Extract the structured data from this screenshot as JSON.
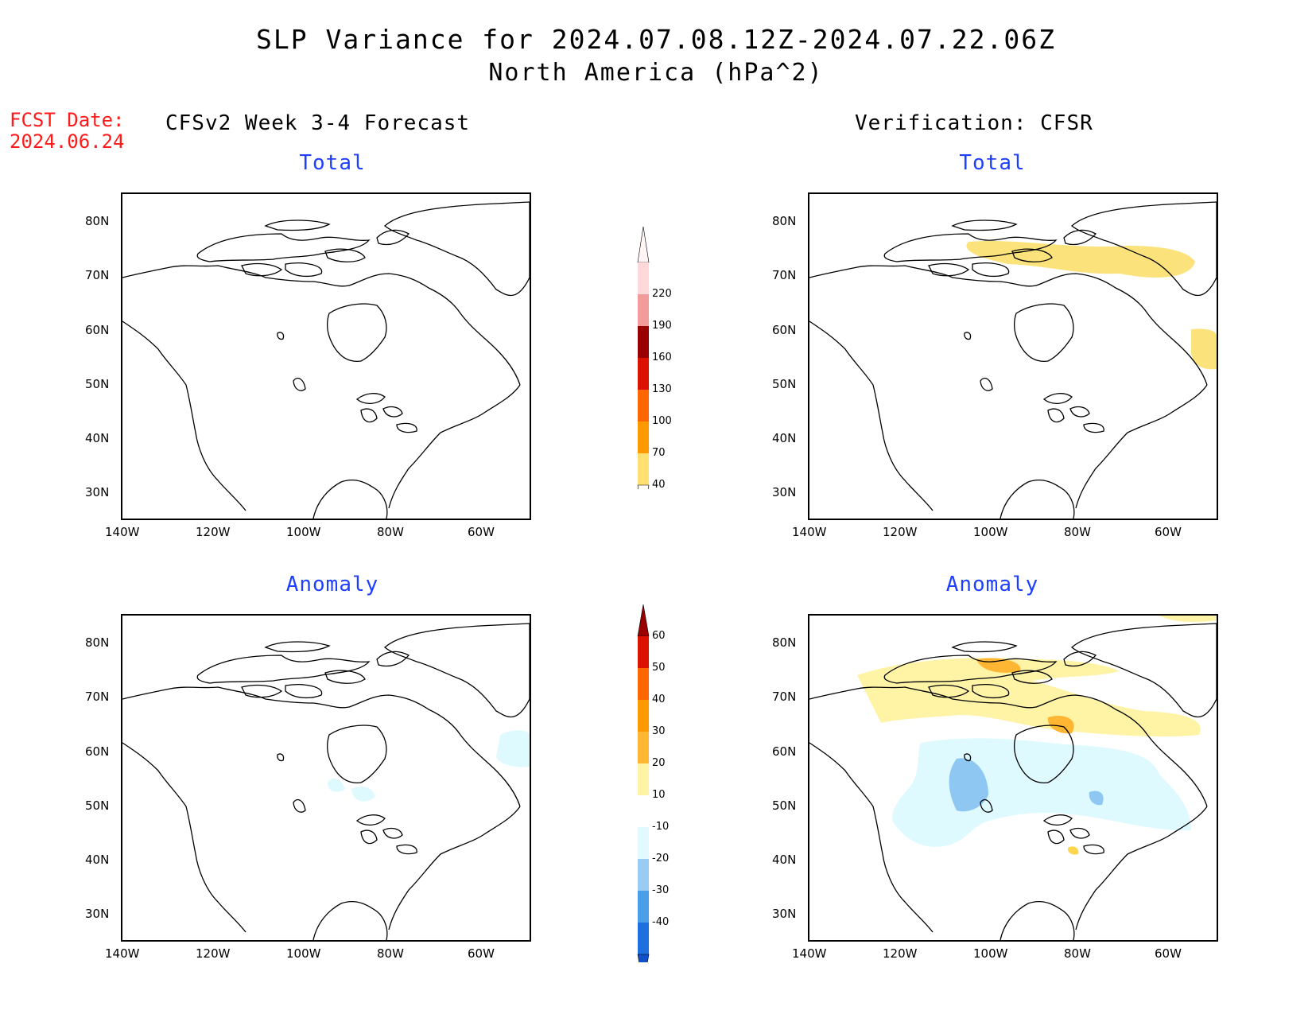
{
  "title": {
    "line1": "SLP Variance for 2024.07.08.12Z-2024.07.22.06Z",
    "line2": "North America (hPa^2)"
  },
  "fcst": {
    "line1": "FCST Date:",
    "line2": "2024.06.24"
  },
  "columns": {
    "left": "CFSv2 Week 3-4 Forecast",
    "right": "Verification: CFSR"
  },
  "panels": {
    "top_left": "Total",
    "top_right": "Total",
    "bottom_left": "Anomaly",
    "bottom_right": "Anomaly"
  },
  "axes": {
    "lat_labels": [
      "80N",
      "70N",
      "60N",
      "50N",
      "40N",
      "30N"
    ],
    "lon_labels": [
      "140W",
      "120W",
      "100W",
      "80W",
      "60W"
    ]
  },
  "colorbar_total": {
    "labels": [
      "220",
      "190",
      "160",
      "130",
      "100",
      "70",
      "40"
    ],
    "colors": [
      "#ffd9d9",
      "#f29b9b",
      "#990000",
      "#dd1100",
      "#ff6600",
      "#ff9900",
      "#ffe070"
    ]
  },
  "colorbar_anomaly": {
    "labels": [
      "60",
      "50",
      "40",
      "30",
      "20",
      "10",
      "-10",
      "-20",
      "-30",
      "-40"
    ],
    "colors": [
      "#990000",
      "#dd1100",
      "#ff6600",
      "#ff9900",
      "#ffb733",
      "#fff3a6",
      "#ffffff",
      "#e0faff",
      "#99ccf5",
      "#4a9fe8",
      "#1e6fe0",
      "#1050c8"
    ]
  }
}
